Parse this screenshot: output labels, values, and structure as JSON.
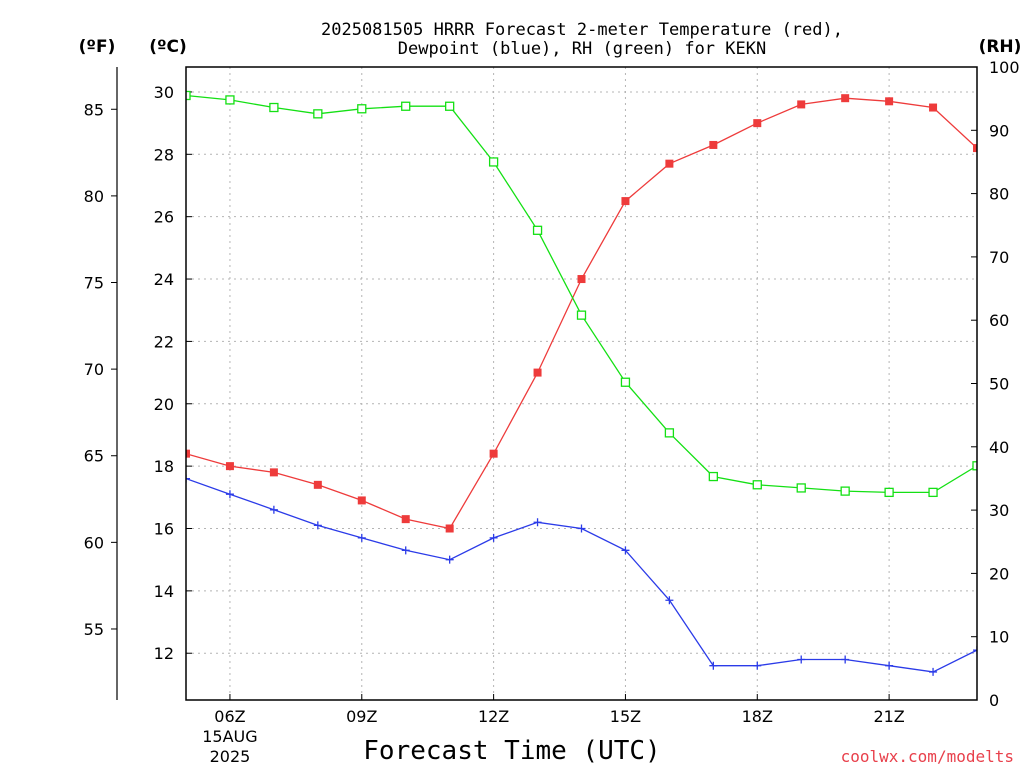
{
  "colors": {
    "temperature": "#ee3b3b",
    "dewpoint": "#2b3be8",
    "rh": "#14e014",
    "credit": "#e8404b"
  },
  "chart_data": {
    "type": "line",
    "title_line1": "2025081505 HRRR Forecast 2-meter Temperature (red),",
    "title_line2": "Dewpoint (blue), RH (green) for KEKN",
    "xlabel": "Forecast Time (UTC)",
    "credit": "coolwx.com/modelts",
    "unit_f": "(ºF)",
    "unit_c": "(ºC)",
    "unit_rh": "(RH)",
    "x_hours": [
      5,
      6,
      7,
      8,
      9,
      10,
      11,
      12,
      13,
      14,
      15,
      16,
      17,
      18,
      19,
      20,
      21,
      22,
      23
    ],
    "xlim": [
      5,
      23
    ],
    "x_ticks": [
      {
        "hour": 6,
        "label": "06Z",
        "sub1": "15AUG",
        "sub2": "2025"
      },
      {
        "hour": 9,
        "label": "09Z"
      },
      {
        "hour": 12,
        "label": "12Z"
      },
      {
        "hour": 15,
        "label": "15Z"
      },
      {
        "hour": 18,
        "label": "18Z"
      },
      {
        "hour": 21,
        "label": "21Z"
      }
    ],
    "ylim_c": [
      10.5,
      30.8
    ],
    "y_ticks_c": [
      12,
      14,
      16,
      18,
      20,
      22,
      24,
      26,
      28,
      30
    ],
    "y_ticks_f": [
      55,
      60,
      65,
      70,
      75,
      80,
      85
    ],
    "ylim_rh": [
      0,
      100
    ],
    "y_ticks_rh": [
      0,
      10,
      20,
      30,
      40,
      50,
      60,
      70,
      80,
      90,
      100
    ],
    "series": [
      {
        "name": "Temperature",
        "axis": "c",
        "marker": "filled-square",
        "values": [
          18.4,
          18.0,
          17.8,
          17.4,
          16.9,
          16.3,
          16.0,
          18.4,
          21.0,
          24.0,
          26.5,
          27.7,
          28.3,
          29.0,
          29.6,
          29.8,
          29.7,
          29.5,
          28.2
        ]
      },
      {
        "name": "Dewpoint",
        "axis": "c",
        "marker": "plus",
        "values": [
          17.6,
          17.1,
          16.6,
          16.1,
          15.7,
          15.3,
          15.0,
          15.7,
          16.2,
          16.0,
          15.3,
          13.7,
          11.6,
          11.6,
          11.8,
          11.8,
          11.6,
          11.4,
          12.1
        ]
      },
      {
        "name": "RH",
        "axis": "rh",
        "marker": "open-square",
        "values": [
          95.5,
          94.8,
          93.6,
          92.6,
          93.4,
          93.8,
          93.8,
          85.0,
          74.2,
          60.8,
          50.2,
          42.2,
          35.3,
          34.0,
          33.5,
          33.0,
          32.8,
          32.8,
          37.0
        ]
      }
    ]
  }
}
